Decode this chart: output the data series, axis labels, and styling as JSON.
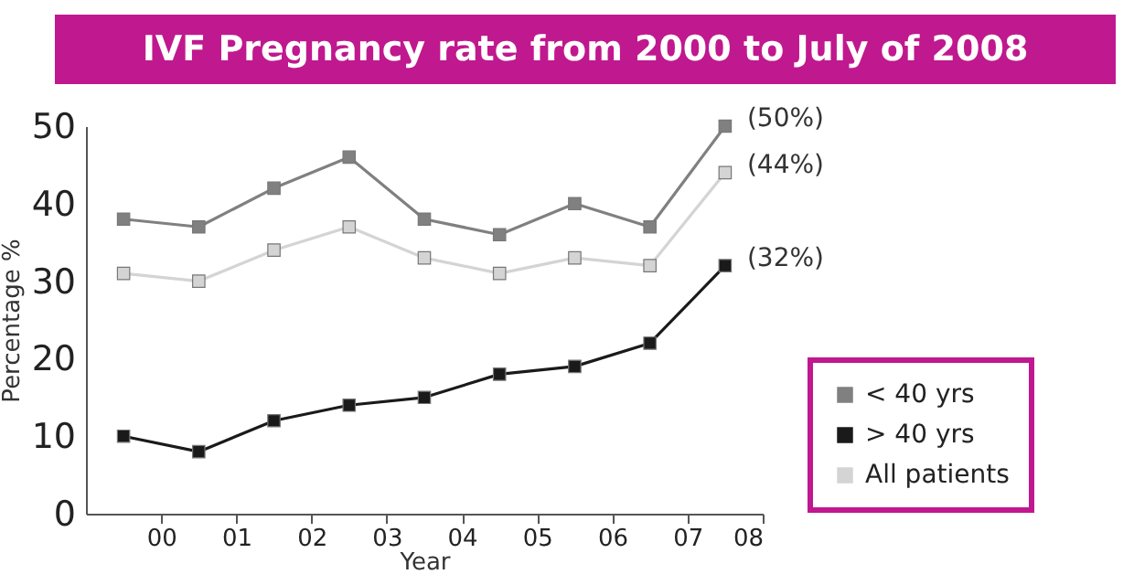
{
  "chart_data": {
    "type": "line",
    "title": "IVF Pregnancy rate from 2000 to July of 2008",
    "xlabel": "Year",
    "ylabel": "Percentage %",
    "x": [
      -0.5,
      0.5,
      1.5,
      2.5,
      3.5,
      4.5,
      5.5,
      6.5,
      7.5
    ],
    "series": [
      {
        "name": "< 40 yrs",
        "color": "#808080",
        "values": [
          38,
          37,
          42,
          46,
          38,
          36,
          40,
          37,
          50
        ],
        "value_labels": [
          null,
          null,
          null,
          null,
          null,
          null,
          null,
          null,
          "(50%)"
        ]
      },
      {
        "name": "> 40 yrs",
        "color": "#1a1a1a",
        "values": [
          10,
          8,
          12,
          14,
          15,
          18,
          19,
          22,
          32
        ],
        "value_labels": [
          null,
          null,
          null,
          null,
          null,
          null,
          null,
          null,
          "(32%)"
        ]
      },
      {
        "name": "All patients",
        "color": "#d4d4d4",
        "values": [
          31,
          30,
          34,
          37,
          33,
          31,
          33,
          32,
          44
        ],
        "value_labels": [
          null,
          null,
          null,
          null,
          null,
          null,
          null,
          null,
          "(44%)"
        ]
      }
    ],
    "xlim": [
      -1,
      8
    ],
    "xticks": [
      {
        "value": 0,
        "label": "00"
      },
      {
        "value": 1,
        "label": "01"
      },
      {
        "value": 2,
        "label": "02"
      },
      {
        "value": 3,
        "label": "03"
      },
      {
        "value": 4,
        "label": "04"
      },
      {
        "value": 5,
        "label": "05"
      },
      {
        "value": 6,
        "label": "06"
      },
      {
        "value": 7,
        "label": "07"
      },
      {
        "value": 8,
        "label": "08"
      }
    ],
    "ylim": [
      0,
      50
    ],
    "yticks": [
      0,
      10,
      20,
      30,
      40,
      50
    ],
    "marker": "square",
    "grid": false,
    "legend": "bottom right"
  }
}
